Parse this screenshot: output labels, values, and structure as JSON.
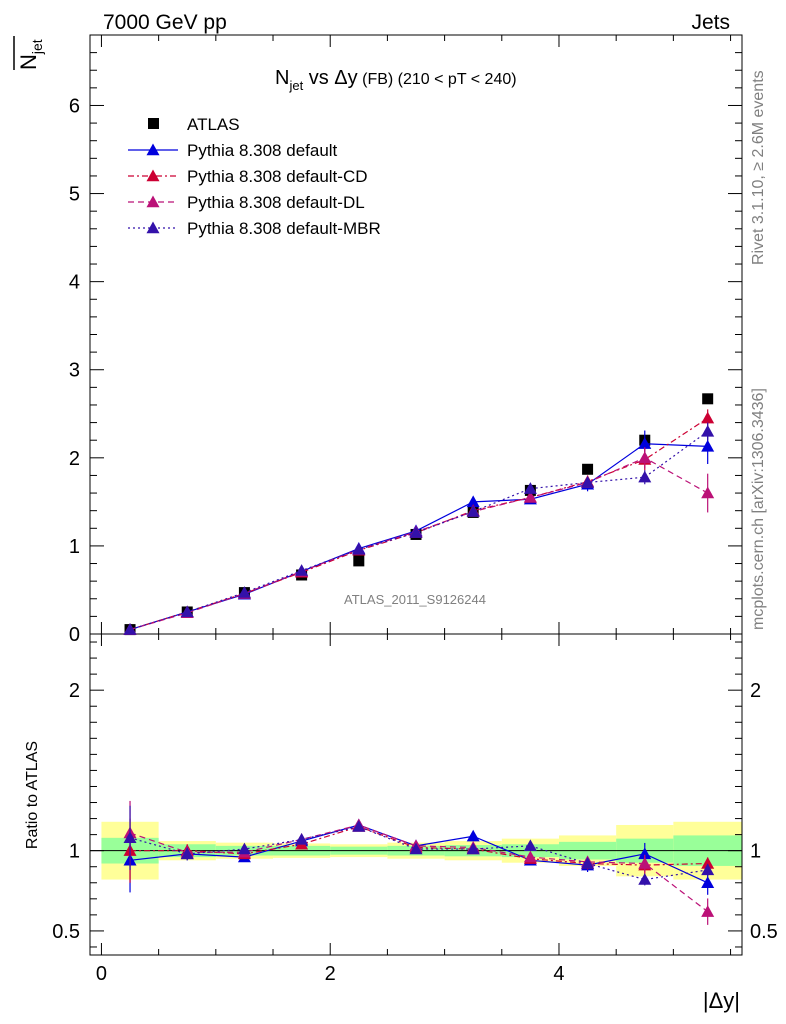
{
  "header": {
    "left": "7000 GeV pp",
    "right": "Jets"
  },
  "side_texts": {
    "rivet": "Rivet 3.1.10, ≥ 2.6M events",
    "mcplots": "mcplots.cern.ch [arXiv:1306.3436]"
  },
  "chart_data": {
    "type": "scatter",
    "title_main": "N",
    "title_sub": "jet",
    "title_rest": " vs Δy",
    "title_small": " (FB) (210 < pT < 240)",
    "ylabel_main": "N",
    "ylabel_sub": "jet",
    "xlabel": "|Δy|",
    "watermark": "ATLAS_2011_S9126244",
    "ratio_ylabel": "Ratio to ATLAS",
    "xlim": [
      -0.1,
      5.6
    ],
    "ylim": [
      0,
      6.8
    ],
    "ratio_ylim": [
      0.35,
      2.35
    ],
    "x_ticks": [
      "0",
      "2",
      "4"
    ],
    "y_ticks": [
      "0",
      "1",
      "2",
      "3",
      "4",
      "5",
      "6"
    ],
    "ratio_ticks": [
      "0.5",
      "1",
      "2"
    ],
    "x": [
      0.25,
      0.75,
      1.25,
      1.75,
      2.25,
      2.75,
      3.25,
      3.75,
      4.25,
      4.75,
      5.3
    ],
    "xerr": [
      0.25,
      0.25,
      0.25,
      0.25,
      0.25,
      0.25,
      0.25,
      0.25,
      0.25,
      0.25,
      0.3
    ],
    "band_green": [
      0.08,
      0.04,
      0.03,
      0.03,
      0.025,
      0.03,
      0.035,
      0.04,
      0.055,
      0.075,
      0.095
    ],
    "band_yellow": [
      0.18,
      0.06,
      0.05,
      0.045,
      0.04,
      0.05,
      0.06,
      0.075,
      0.095,
      0.16,
      0.18
    ],
    "series": [
      {
        "name": "ATLAS",
        "color": "#000000",
        "marker": "square",
        "line": "none",
        "values": [
          0.05,
          0.25,
          0.47,
          0.67,
          0.83,
          1.13,
          1.38,
          1.63,
          1.87,
          2.2,
          2.67
        ]
      },
      {
        "name": "Pythia 8.308 default",
        "color": "#0000dd",
        "marker": "triangle",
        "line": "solid",
        "values": [
          0.05,
          0.25,
          0.45,
          0.71,
          0.97,
          1.17,
          1.5,
          1.53,
          1.7,
          2.16,
          2.13
        ],
        "errors": [
          0.01,
          0.01,
          0.01,
          0.01,
          0.01,
          0.02,
          0.03,
          0.05,
          0.08,
          0.15,
          0.2
        ],
        "ratio": [
          0.94,
          0.98,
          0.96,
          1.06,
          1.16,
          1.03,
          1.09,
          0.94,
          0.91,
          0.98,
          0.8
        ]
      },
      {
        "name": "Pythia 8.308 default-CD",
        "color": "#cc0033",
        "marker": "triangle",
        "line": "dashdot",
        "values": [
          0.05,
          0.25,
          0.46,
          0.7,
          0.95,
          1.15,
          1.4,
          1.55,
          1.73,
          1.98,
          2.45
        ],
        "errors": [
          0.01,
          0.01,
          0.01,
          0.01,
          0.01,
          0.02,
          0.03,
          0.04,
          0.07,
          0.12,
          0.1
        ],
        "ratio": [
          1.0,
          1.0,
          0.98,
          1.04,
          1.15,
          1.02,
          1.01,
          0.95,
          0.92,
          0.91,
          0.92
        ]
      },
      {
        "name": "Pythia 8.308 default-DL",
        "color": "#bb1177",
        "marker": "triangle",
        "line": "dashed",
        "values": [
          0.05,
          0.24,
          0.46,
          0.71,
          0.96,
          1.16,
          1.39,
          1.55,
          1.72,
          2.0,
          1.6
        ],
        "errors": [
          0.01,
          0.01,
          0.01,
          0.01,
          0.01,
          0.02,
          0.03,
          0.04,
          0.06,
          0.12,
          0.22
        ],
        "ratio": [
          1.11,
          0.99,
          0.99,
          1.07,
          1.16,
          1.03,
          1.02,
          0.96,
          0.93,
          0.92,
          0.62
        ]
      },
      {
        "name": "Pythia 8.308 default-MBR",
        "color": "#3311aa",
        "marker": "triangle",
        "line": "dotted",
        "values": [
          0.05,
          0.25,
          0.47,
          0.72,
          0.96,
          1.15,
          1.39,
          1.65,
          1.72,
          1.78,
          2.3
        ],
        "errors": [
          0.01,
          0.01,
          0.01,
          0.01,
          0.01,
          0.02,
          0.03,
          0.04,
          0.05,
          0.08,
          0.1
        ],
        "ratio": [
          1.08,
          0.98,
          1.01,
          1.07,
          1.15,
          1.01,
          1.01,
          1.03,
          0.92,
          0.82,
          0.88
        ]
      }
    ],
    "grid": false,
    "legend_position": "top-left"
  }
}
